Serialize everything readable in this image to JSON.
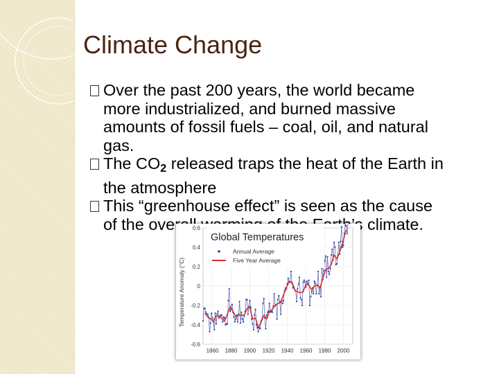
{
  "slide": {
    "title": "Climate Change",
    "bullets": [
      {
        "lines": [
          "Over the past 200 years, the world became",
          "more industrialized, and burned massive",
          "amounts of fossil fuels – coal, oil, and natural",
          "gas."
        ]
      },
      {
        "pre": "The CO",
        "sub": "2",
        "post": " released traps the heat of the Earth in",
        "line2": "the atmosphere"
      },
      {
        "lines": [
          "This “greenhouse effect” is seen as the cause",
          "of the overall warming of the Earth’s climate."
        ]
      }
    ]
  },
  "colors": {
    "title": "#4a2412",
    "sidebar": "#f3ebd0",
    "annual": "#2b3a9a",
    "five_year": "#d62b2b"
  },
  "chart_data": {
    "type": "line",
    "title": "Global Temperatures",
    "xlabel": "",
    "ylabel": "Temperature Anomaly (°C)",
    "xlim": [
      1850,
      2010
    ],
    "ylim": [
      -0.6,
      0.6
    ],
    "x_ticks": [
      1860,
      1880,
      1900,
      1920,
      1940,
      1960,
      1980,
      2000
    ],
    "y_ticks": [
      -0.6,
      -0.4,
      -0.2,
      0,
      0.2,
      0.4,
      0.6
    ],
    "y_tick_labels": [
      "-0.6",
      "-0.4",
      "-0.2",
      "0",
      "0.2",
      "0.4",
      "0.6"
    ],
    "legend": [
      "Annual Average",
      "Five Year Average"
    ],
    "legend_position": "top-left",
    "series": [
      {
        "name": "Annual Average",
        "style": "line-with-dots",
        "x": [
          1850,
          1851,
          1852,
          1853,
          1854,
          1855,
          1856,
          1857,
          1858,
          1859,
          1860,
          1861,
          1862,
          1863,
          1864,
          1865,
          1866,
          1867,
          1868,
          1869,
          1870,
          1871,
          1872,
          1873,
          1874,
          1875,
          1876,
          1877,
          1878,
          1879,
          1880,
          1881,
          1882,
          1883,
          1884,
          1885,
          1886,
          1887,
          1888,
          1889,
          1890,
          1891,
          1892,
          1893,
          1894,
          1895,
          1896,
          1897,
          1898,
          1899,
          1900,
          1901,
          1902,
          1903,
          1904,
          1905,
          1906,
          1907,
          1908,
          1909,
          1910,
          1911,
          1912,
          1913,
          1914,
          1915,
          1916,
          1917,
          1918,
          1919,
          1920,
          1921,
          1922,
          1923,
          1924,
          1925,
          1926,
          1927,
          1928,
          1929,
          1930,
          1931,
          1932,
          1933,
          1934,
          1935,
          1936,
          1937,
          1938,
          1939,
          1940,
          1941,
          1942,
          1943,
          1944,
          1945,
          1946,
          1947,
          1948,
          1949,
          1950,
          1951,
          1952,
          1953,
          1954,
          1955,
          1956,
          1957,
          1958,
          1959,
          1960,
          1961,
          1962,
          1963,
          1964,
          1965,
          1966,
          1967,
          1968,
          1969,
          1970,
          1971,
          1972,
          1973,
          1974,
          1975,
          1976,
          1977,
          1978,
          1979,
          1980,
          1981,
          1982,
          1983,
          1984,
          1985,
          1986,
          1987,
          1988,
          1989,
          1990,
          1991,
          1992,
          1993,
          1994,
          1995,
          1996,
          1997,
          1998,
          1999,
          2000,
          2001,
          2002,
          2003,
          2004,
          2005
        ],
        "values": [
          -0.36,
          -0.23,
          -0.23,
          -0.27,
          -0.29,
          -0.29,
          -0.32,
          -0.47,
          -0.38,
          -0.28,
          -0.33,
          -0.37,
          -0.45,
          -0.28,
          -0.39,
          -0.29,
          -0.26,
          -0.33,
          -0.31,
          -0.3,
          -0.3,
          -0.37,
          -0.32,
          -0.33,
          -0.4,
          -0.39,
          -0.39,
          -0.15,
          -0.03,
          -0.26,
          -0.24,
          -0.19,
          -0.27,
          -0.32,
          -0.37,
          -0.34,
          -0.3,
          -0.37,
          -0.29,
          -0.16,
          -0.38,
          -0.27,
          -0.34,
          -0.37,
          -0.31,
          -0.26,
          -0.14,
          -0.14,
          -0.29,
          -0.21,
          -0.15,
          -0.22,
          -0.34,
          -0.39,
          -0.45,
          -0.3,
          -0.24,
          -0.4,
          -0.43,
          -0.47,
          -0.43,
          -0.44,
          -0.36,
          -0.34,
          -0.18,
          -0.13,
          -0.33,
          -0.44,
          -0.3,
          -0.27,
          -0.26,
          -0.18,
          -0.27,
          -0.26,
          -0.27,
          -0.21,
          -0.08,
          -0.2,
          -0.19,
          -0.34,
          -0.14,
          -0.1,
          -0.16,
          -0.29,
          -0.14,
          -0.18,
          -0.15,
          -0.05,
          -0.02,
          -0.03,
          0.02,
          0.08,
          0.04,
          0.04,
          0.15,
          0.03,
          -0.02,
          -0.01,
          -0.04,
          -0.05,
          -0.16,
          -0.03,
          0.02,
          0.09,
          -0.12,
          -0.14,
          -0.2,
          0.04,
          0.06,
          0.04,
          -0.01,
          0.05,
          0.02,
          0.06,
          -0.2,
          -0.11,
          -0.06,
          -0.02,
          -0.08,
          0.05,
          0.03,
          -0.08,
          0.01,
          0.15,
          -0.08,
          -0.02,
          -0.11,
          0.18,
          0.07,
          0.16,
          0.26,
          0.31,
          0.09,
          0.3,
          0.15,
          0.12,
          0.18,
          0.32,
          0.38,
          0.27,
          0.45,
          0.4,
          0.22,
          0.23,
          0.31,
          0.45,
          0.33,
          0.46,
          0.61,
          0.4,
          0.42,
          0.54,
          0.63,
          0.62,
          0.54,
          0.68
        ]
      },
      {
        "name": "Five Year Average",
        "style": "line",
        "x": [
          1852,
          1855,
          1858,
          1861,
          1864,
          1867,
          1870,
          1873,
          1876,
          1879,
          1882,
          1885,
          1888,
          1891,
          1894,
          1897,
          1900,
          1903,
          1906,
          1909,
          1912,
          1915,
          1918,
          1921,
          1924,
          1927,
          1930,
          1933,
          1936,
          1939,
          1942,
          1945,
          1948,
          1951,
          1954,
          1957,
          1960,
          1963,
          1966,
          1969,
          1972,
          1975,
          1978,
          1981,
          1984,
          1987,
          1990,
          1993,
          1996,
          1999,
          2002,
          2003
        ],
        "values": [
          -0.28,
          -0.32,
          -0.34,
          -0.36,
          -0.31,
          -0.31,
          -0.33,
          -0.36,
          -0.29,
          -0.21,
          -0.26,
          -0.32,
          -0.3,
          -0.3,
          -0.3,
          -0.23,
          -0.22,
          -0.34,
          -0.33,
          -0.43,
          -0.37,
          -0.3,
          -0.34,
          -0.26,
          -0.24,
          -0.2,
          -0.18,
          -0.17,
          -0.09,
          -0.02,
          0.05,
          0.04,
          -0.04,
          -0.06,
          -0.07,
          -0.06,
          0.02,
          0.01,
          -0.04,
          0.0,
          0.01,
          -0.02,
          0.08,
          0.17,
          0.18,
          0.22,
          0.32,
          0.28,
          0.35,
          0.44,
          0.55,
          0.58
        ]
      }
    ]
  }
}
